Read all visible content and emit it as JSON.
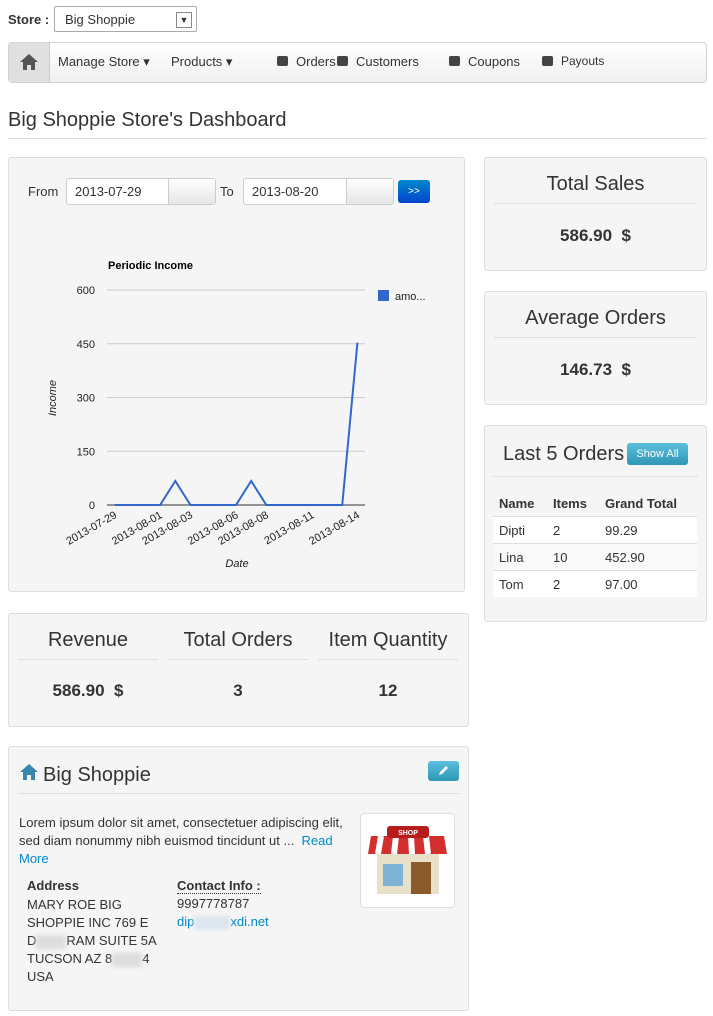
{
  "store_select": {
    "label": "Store :",
    "value": "Big Shoppie"
  },
  "nav": [
    "Manage Store",
    "Products",
    "Orders",
    "Customers",
    "Coupons",
    "Payouts"
  ],
  "page_title": "Big Shoppie Store's Dashboard",
  "date_filter": {
    "from_label": "From",
    "from": "2013-07-29",
    "to_label": "To",
    "to": "2013-08-20",
    "button": ">>"
  },
  "chart_data": {
    "type": "line",
    "title": "Periodic Income",
    "x_label": "Date",
    "y_label": "Income",
    "categories": [
      "2013-07-29",
      null,
      null,
      "2013-08-01",
      null,
      "2013-08-03",
      null,
      null,
      "2013-08-06",
      null,
      "2013-08-08",
      null,
      null,
      "2013-08-11",
      null,
      null,
      "2013-08-14"
    ],
    "series": [
      {
        "name": "amo...",
        "color": "#3366cc",
        "values": [
          0,
          0,
          0,
          0,
          67,
          0,
          0,
          0,
          0,
          67,
          0,
          0,
          0,
          0,
          0,
          0,
          452.9
        ]
      }
    ],
    "ylim": [
      0,
      600
    ],
    "yticks": [
      0,
      150,
      300,
      450,
      600
    ],
    "grid": true,
    "legend": "top-right"
  },
  "summary": [
    {
      "title": "Total Sales",
      "value": "586.90",
      "unit": "$"
    },
    {
      "title": "Average Orders",
      "value": "146.73",
      "unit": "$"
    }
  ],
  "last_orders": {
    "title": "Last 5 Orders",
    "button": "Show All",
    "headers": [
      "Name",
      "Items",
      "Grand Total"
    ],
    "rows": [
      [
        "Dipti",
        "2",
        "99.29"
      ],
      [
        "Lina",
        "10",
        "452.90"
      ],
      [
        "Tom",
        "2",
        "97.00"
      ]
    ]
  },
  "stats": [
    {
      "label": "Revenue",
      "value": "586.90",
      "unit": "$"
    },
    {
      "label": "Total Orders",
      "value": "3"
    },
    {
      "label": "Item Quantity",
      "value": "12"
    }
  ],
  "store": {
    "name": "Big Shoppie",
    "description": "Lorem ipsum dolor sit amet, consectetuer adipiscing elit, sed diam nonummy nibh euismod tincidunt ut ...",
    "read_more": "Read More",
    "image_label": "SHOP",
    "address_label": "Address",
    "address": [
      [
        "MARY ROE BIG"
      ],
      [
        "SHOPPIE INC 769 E"
      ],
      [
        "D",
        "RAM SUITE 5A"
      ],
      [
        "TUCSON AZ 8",
        "4"
      ],
      [
        "USA"
      ]
    ],
    "contact_label": "Contact Info :",
    "phone": "9997778787",
    "email": [
      "dip",
      "xdi.net"
    ]
  }
}
